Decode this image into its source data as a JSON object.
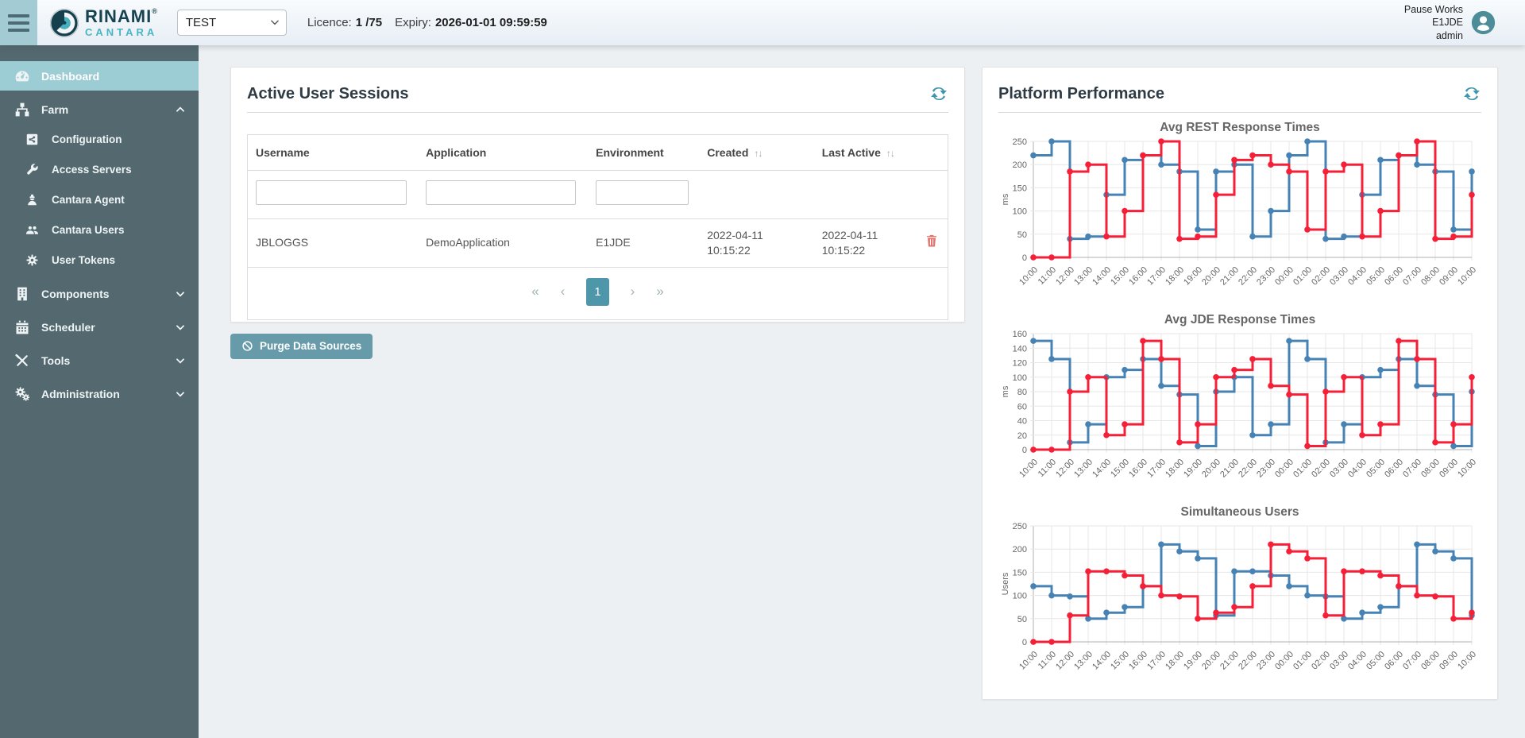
{
  "header": {
    "brand": {
      "name": "RINAMI",
      "registered": "®",
      "sub": "CANTARA"
    },
    "environment_select": {
      "value": "TEST"
    },
    "licence": {
      "label": "Licence:",
      "value": "1 /75"
    },
    "expiry": {
      "label": "Expiry:",
      "value": "2026-01-01 09:59:59"
    },
    "user": {
      "name": "Pause Works",
      "environment": "E1JDE",
      "role": "admin"
    }
  },
  "sidebar": {
    "items": [
      {
        "label": "Dashboard",
        "active": true
      },
      {
        "label": "Farm",
        "expanded": true,
        "children": [
          "Configuration",
          "Access Servers",
          "Cantara Agent",
          "Cantara Users",
          "User Tokens"
        ]
      },
      {
        "label": "Components"
      },
      {
        "label": "Scheduler"
      },
      {
        "label": "Tools"
      },
      {
        "label": "Administration"
      }
    ]
  },
  "sessions_panel": {
    "title": "Active User Sessions",
    "table": {
      "columns": [
        "Username",
        "Application",
        "Environment",
        "Created",
        "Last Active"
      ],
      "sort_glyph": "↑↓",
      "rows": [
        {
          "username": "JBLOGGS",
          "application": "DemoApplication",
          "environment": "E1JDE",
          "created_date": "2022-04-11",
          "created_time": "10:15:22",
          "last_active_date": "2022-04-11",
          "last_active_time": "10:15:22"
        }
      ]
    },
    "pagination": {
      "first": "«",
      "prev": "‹",
      "page": "1",
      "next": "›",
      "last": "»"
    },
    "purge_button_label": "Purge Data Sources"
  },
  "performance_panel": {
    "title": "Platform Performance"
  },
  "chart_data": [
    {
      "type": "line",
      "stepped": true,
      "title": "Avg REST Response Times",
      "xlabel": "",
      "ylabel": "ms",
      "ylim": [
        0,
        250
      ],
      "ytick_step": 50,
      "grid": true,
      "legend": "none",
      "categories": [
        "10:00",
        "11:00",
        "12:00",
        "13:00",
        "14:00",
        "15:00",
        "16:00",
        "17:00",
        "18:00",
        "19:00",
        "20:00",
        "21:00",
        "22:00",
        "23:00",
        "00:00",
        "01:00",
        "02:00",
        "03:00",
        "04:00",
        "05:00",
        "06:00",
        "07:00",
        "08:00",
        "09:00",
        "10:00"
      ],
      "series": [
        {
          "color": "#4683b4",
          "values": [
            220,
            250,
            40,
            45,
            135,
            210,
            220,
            200,
            185,
            60,
            185,
            200,
            45,
            100,
            220,
            250,
            40,
            45,
            135,
            210,
            220,
            200,
            185,
            60,
            185
          ]
        },
        {
          "color": "#f51f38",
          "values": [
            0,
            0,
            185,
            200,
            45,
            100,
            220,
            250,
            40,
            45,
            135,
            210,
            220,
            200,
            185,
            60,
            185,
            200,
            45,
            100,
            220,
            250,
            40,
            45,
            135
          ]
        }
      ]
    },
    {
      "type": "line",
      "stepped": true,
      "title": "Avg JDE Response Times",
      "xlabel": "",
      "ylabel": "ms",
      "ylim": [
        0,
        160
      ],
      "ytick_step": 20,
      "grid": true,
      "legend": "none",
      "categories": [
        "10:00",
        "11:00",
        "12:00",
        "13:00",
        "14:00",
        "15:00",
        "16:00",
        "17:00",
        "18:00",
        "19:00",
        "20:00",
        "21:00",
        "22:00",
        "23:00",
        "00:00",
        "01:00",
        "02:00",
        "03:00",
        "04:00",
        "05:00",
        "06:00",
        "07:00",
        "08:00",
        "09:00",
        "10:00"
      ],
      "series": [
        {
          "color": "#4683b4",
          "values": [
            150,
            125,
            10,
            35,
            100,
            110,
            125,
            88,
            76,
            5,
            80,
            100,
            20,
            35,
            150,
            125,
            10,
            35,
            100,
            110,
            125,
            88,
            76,
            5,
            80
          ]
        },
        {
          "color": "#f51f38",
          "values": [
            0,
            0,
            80,
            100,
            20,
            35,
            150,
            125,
            10,
            35,
            100,
            110,
            125,
            88,
            76,
            5,
            80,
            100,
            20,
            35,
            150,
            125,
            10,
            35,
            100
          ]
        }
      ]
    },
    {
      "type": "line",
      "stepped": true,
      "title": "Simultaneous Users",
      "xlabel": "",
      "ylabel": "Users",
      "ylim": [
        0,
        250
      ],
      "ytick_step": 50,
      "grid": true,
      "legend": "none",
      "categories": [
        "10:00",
        "11:00",
        "12:00",
        "13:00",
        "14:00",
        "15:00",
        "16:00",
        "17:00",
        "18:00",
        "19:00",
        "20:00",
        "21:00",
        "22:00",
        "23:00",
        "00:00",
        "01:00",
        "02:00",
        "03:00",
        "04:00",
        "05:00",
        "06:00",
        "07:00",
        "08:00",
        "09:00",
        "10:00"
      ],
      "series": [
        {
          "color": "#4683b4",
          "values": [
            120,
            100,
            98,
            50,
            63,
            75,
            120,
            210,
            195,
            180,
            57,
            152,
            152,
            143,
            120,
            100,
            98,
            50,
            63,
            75,
            120,
            210,
            195,
            180,
            57
          ]
        },
        {
          "color": "#f51f38",
          "values": [
            0,
            0,
            57,
            152,
            152,
            143,
            120,
            100,
            98,
            50,
            63,
            75,
            120,
            210,
            195,
            180,
            57,
            152,
            152,
            143,
            120,
            100,
            98,
            50,
            63
          ]
        }
      ]
    }
  ]
}
